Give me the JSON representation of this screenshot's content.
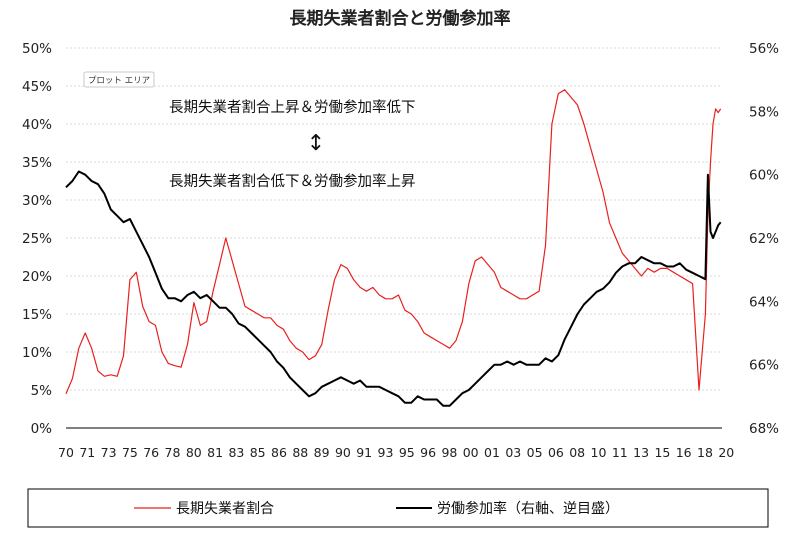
{
  "chart_data": {
    "type": "line",
    "title": "長期失業者割合と労働参加率",
    "plot_area_tag": "プロット エリア",
    "x_categories": [
      "70",
      "71",
      "73",
      "75",
      "76",
      "78",
      "80",
      "81",
      "83",
      "85",
      "86",
      "88",
      "89",
      "90",
      "91",
      "93",
      "95",
      "96",
      "98",
      "00",
      "01",
      "03",
      "05",
      "06",
      "08",
      "10",
      "11",
      "13",
      "15",
      "16",
      "18",
      "20"
    ],
    "y_left": {
      "ticks": [
        "50%",
        "45%",
        "40%",
        "35%",
        "30%",
        "25%",
        "20%",
        "15%",
        "10%",
        "5%",
        "0%"
      ],
      "min": 0,
      "max": 50
    },
    "y_right": {
      "ticks": [
        "56%",
        "58%",
        "60%",
        "62%",
        "64%",
        "66%",
        "68%"
      ],
      "min": 56,
      "max": 68,
      "reversed": true
    },
    "annotations": {
      "upper": "長期失業者割合上昇＆労働参加率低下",
      "arrow": "↕",
      "lower": "長期失業者割合低下＆労働参加率上昇"
    },
    "legend": {
      "placement": "bottom"
    },
    "grid": true,
    "series": [
      {
        "name": "長期失業者割合",
        "axis": "left",
        "color": "#e8211e",
        "x": [
          1970,
          1970.5,
          1971,
          1971.5,
          1972,
          1972.5,
          1973,
          1973.5,
          1974,
          1974.5,
          1975,
          1975.5,
          1976,
          1976.5,
          1977,
          1977.5,
          1978,
          1978.5,
          1979,
          1979.5,
          1980,
          1980.5,
          1981,
          1981.5,
          1982,
          1982.5,
          1983,
          1983.5,
          1984,
          1984.5,
          1985,
          1985.5,
          1986,
          1986.5,
          1987,
          1987.5,
          1988,
          1988.5,
          1989,
          1989.5,
          1990,
          1990.5,
          1991,
          1991.5,
          1992,
          1992.5,
          1993,
          1993.5,
          1994,
          1994.5,
          1995,
          1995.5,
          1996,
          1996.5,
          1997,
          1997.5,
          1998,
          1998.5,
          1999,
          1999.5,
          2000,
          2000.5,
          2001,
          2001.5,
          2002,
          2002.5,
          2003,
          2003.5,
          2004,
          2004.5,
          2005,
          2005.5,
          2006,
          2006.5,
          2007,
          2007.5,
          2008,
          2008.5,
          2009,
          2009.5,
          2010,
          2010.5,
          2011,
          2011.5,
          2012,
          2012.5,
          2013,
          2013.5,
          2014,
          2014.5,
          2015,
          2015.5,
          2016,
          2016.5,
          2017,
          2017.5,
          2018,
          2018.5,
          2019,
          2019.5,
          2020,
          2020.2,
          2020.4,
          2020.6,
          2020.8,
          2021,
          2021.2
        ],
        "values": [
          4.5,
          6.5,
          10.5,
          12.5,
          10.5,
          7.5,
          6.8,
          7.0,
          6.8,
          9.5,
          19.5,
          20.5,
          16.0,
          14.0,
          13.5,
          10.0,
          8.5,
          8.2,
          8.0,
          11.0,
          16.5,
          13.5,
          14.0,
          18.0,
          21.5,
          25.0,
          22.0,
          19.0,
          16.0,
          15.5,
          15.0,
          14.5,
          14.5,
          13.5,
          13.0,
          11.5,
          10.5,
          10.0,
          9.0,
          9.5,
          11.0,
          15.5,
          19.5,
          21.5,
          21.0,
          19.5,
          18.5,
          18.0,
          18.5,
          17.5,
          17.0,
          17.0,
          17.5,
          15.5,
          15.0,
          14.0,
          12.5,
          12.0,
          11.5,
          11.0,
          10.5,
          11.5,
          14.0,
          19.0,
          22.0,
          22.5,
          21.5,
          20.5,
          18.5,
          18.0,
          17.5,
          17.0,
          17.0,
          17.5,
          18.0,
          24.0,
          40.0,
          44.0,
          44.5,
          43.5,
          42.5,
          40.0,
          37.0,
          34.0,
          31.0,
          27.0,
          25.0,
          23.0,
          22.0,
          21.0,
          20.0,
          21.0,
          20.5,
          21.0,
          21.0,
          20.5,
          20.0,
          19.5,
          19.0,
          5.0,
          15.0,
          28.0,
          35.0,
          40.0,
          42.0,
          41.5,
          42.0
        ]
      },
      {
        "name": "労働参加率（右軸、逆目盛）",
        "axis": "right",
        "color": "#000000",
        "x": [
          1970,
          1970.5,
          1971,
          1971.5,
          1972,
          1972.5,
          1973,
          1973.5,
          1974,
          1974.5,
          1975,
          1975.5,
          1976,
          1976.5,
          1977,
          1977.5,
          1978,
          1978.5,
          1979,
          1979.5,
          1980,
          1980.5,
          1981,
          1981.5,
          1982,
          1982.5,
          1983,
          1983.5,
          1984,
          1984.5,
          1985,
          1985.5,
          1986,
          1986.5,
          1987,
          1987.5,
          1988,
          1988.5,
          1989,
          1989.5,
          1990,
          1990.5,
          1991,
          1991.5,
          1992,
          1992.5,
          1993,
          1993.5,
          1994,
          1994.5,
          1995,
          1995.5,
          1996,
          1996.5,
          1997,
          1997.5,
          1998,
          1998.5,
          1999,
          1999.5,
          2000,
          2000.5,
          2001,
          2001.5,
          2002,
          2002.5,
          2003,
          2003.5,
          2004,
          2004.5,
          2005,
          2005.5,
          2006,
          2006.5,
          2007,
          2007.5,
          2008,
          2008.5,
          2009,
          2009.5,
          2010,
          2010.5,
          2011,
          2011.5,
          2012,
          2012.5,
          2013,
          2013.5,
          2014,
          2014.5,
          2015,
          2015.5,
          2016,
          2016.5,
          2017,
          2017.5,
          2018,
          2018.5,
          2019,
          2019.5,
          2020,
          2020.2,
          2020.4,
          2020.6,
          2020.8,
          2021,
          2021.2
        ],
        "values": [
          60.4,
          60.2,
          59.9,
          60.0,
          60.2,
          60.3,
          60.6,
          61.1,
          61.3,
          61.5,
          61.4,
          61.8,
          62.2,
          62.6,
          63.1,
          63.6,
          63.9,
          63.9,
          64.0,
          63.8,
          63.7,
          63.9,
          63.8,
          64.0,
          64.2,
          64.2,
          64.4,
          64.7,
          64.8,
          65.0,
          65.2,
          65.4,
          65.6,
          65.9,
          66.1,
          66.4,
          66.6,
          66.8,
          67.0,
          66.9,
          66.7,
          66.6,
          66.5,
          66.4,
          66.5,
          66.6,
          66.5,
          66.7,
          66.7,
          66.7,
          66.8,
          66.9,
          67.0,
          67.2,
          67.2,
          67.0,
          67.1,
          67.1,
          67.1,
          67.3,
          67.3,
          67.1,
          66.9,
          66.8,
          66.6,
          66.4,
          66.2,
          66.0,
          66.0,
          65.9,
          66.0,
          65.9,
          66.0,
          66.0,
          66.0,
          65.8,
          65.9,
          65.7,
          65.2,
          64.8,
          64.4,
          64.1,
          63.9,
          63.7,
          63.6,
          63.4,
          63.1,
          62.9,
          62.8,
          62.8,
          62.6,
          62.7,
          62.8,
          62.8,
          62.9,
          62.9,
          62.8,
          63.0,
          63.1,
          63.2,
          63.3,
          60.0,
          61.8,
          62.0,
          61.8,
          61.6,
          61.5
        ]
      }
    ]
  }
}
